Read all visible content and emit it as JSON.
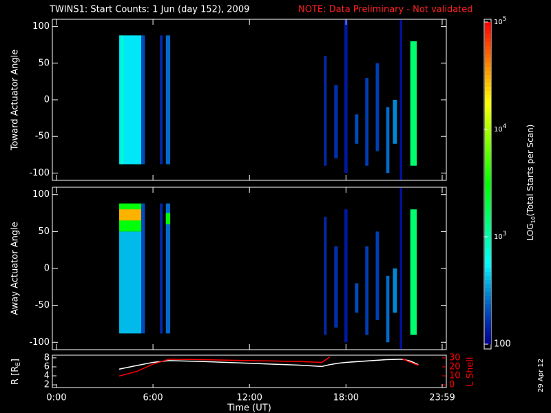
{
  "title": "TWINS1: Start Counts:  1 Jun (day 152), 2009",
  "note": "NOTE: Data Preliminary - Not validated",
  "date": "29 Apr 12",
  "colorbar": {
    "scale": "log",
    "colormap": "rainbow",
    "lim": [
      100,
      100000
    ],
    "ticks": [
      100,
      {
        "value": 1000,
        "label": "10",
        "exponent": "3"
      },
      {
        "value": 10000,
        "label": "10",
        "exponent": "4"
      },
      {
        "value": 100000,
        "label": "10",
        "exponent": "5"
      }
    ],
    "label": [
      "LOG",
      "10",
      "(Total Starts per Scan)"
    ]
  },
  "chart_data": [
    {
      "type": "heatmap",
      "ylabel": "Toward Actuator Angle",
      "xlim": [
        0,
        23.983
      ],
      "ylim": [
        -110,
        110
      ],
      "yticks": [
        -100,
        -50,
        0,
        50,
        100
      ],
      "blocks": [
        {
          "x": [
            3.9,
            5.27
          ],
          "y": [
            -88,
            88
          ],
          "value": 500
        },
        {
          "x": [
            4.0,
            4.15
          ],
          "y": [
            -88,
            88
          ],
          "value": 800
        },
        {
          "x": [
            5.27,
            5.5
          ],
          "y": [
            -88,
            88
          ],
          "value": 200
        },
        {
          "x": [
            6.43,
            6.6
          ],
          "y": [
            -88,
            88
          ],
          "value": 150
        },
        {
          "x": [
            6.8,
            7.07
          ],
          "y": [
            -88,
            88
          ],
          "value": 250
        },
        {
          "x": [
            16.63,
            16.8
          ],
          "y": [
            -90,
            60
          ],
          "value": 150
        },
        {
          "x": [
            17.27,
            17.5
          ],
          "y": [
            -80,
            20
          ],
          "value": 160
        },
        {
          "x": [
            17.9,
            18.1
          ],
          "y": [
            -100,
            110
          ],
          "value": 130
        },
        {
          "x": [
            18.56,
            18.77
          ],
          "y": [
            -60,
            -20
          ],
          "value": 200
        },
        {
          "x": [
            19.2,
            19.4
          ],
          "y": [
            -90,
            30
          ],
          "value": 180
        },
        {
          "x": [
            19.85,
            20.06
          ],
          "y": [
            -70,
            50
          ],
          "value": 180
        },
        {
          "x": [
            20.5,
            20.7
          ],
          "y": [
            -100,
            -10
          ],
          "value": 250
        },
        {
          "x": [
            20.92,
            21.17
          ],
          "y": [
            -60,
            0
          ],
          "value": 300
        },
        {
          "x": [
            21.35,
            21.5
          ],
          "y": [
            -110,
            110
          ],
          "value": 120
        },
        {
          "x": [
            22.0,
            22.4
          ],
          "y": [
            -90,
            80
          ],
          "value": 1500
        }
      ]
    },
    {
      "type": "heatmap",
      "ylabel": "Away Actuator Angle",
      "xlim": [
        0,
        23.983
      ],
      "ylim": [
        -110,
        110
      ],
      "yticks": [
        -100,
        -50,
        0,
        50,
        100
      ],
      "blocks": [
        {
          "x": [
            3.9,
            5.27
          ],
          "y": [
            -88,
            50
          ],
          "value": 400
        },
        {
          "x": [
            3.9,
            5.27
          ],
          "y": [
            50,
            88
          ],
          "value": 3000
        },
        {
          "x": [
            3.9,
            5.27
          ],
          "y": [
            65,
            80
          ],
          "value": 30000
        },
        {
          "x": [
            5.27,
            5.5
          ],
          "y": [
            -88,
            88
          ],
          "value": 200
        },
        {
          "x": [
            6.43,
            6.6
          ],
          "y": [
            -88,
            88
          ],
          "value": 150
        },
        {
          "x": [
            6.8,
            7.07
          ],
          "y": [
            -88,
            88
          ],
          "value": 250
        },
        {
          "x": [
            6.8,
            7.07
          ],
          "y": [
            60,
            75
          ],
          "value": 3000
        },
        {
          "x": [
            16.63,
            16.8
          ],
          "y": [
            -90,
            70
          ],
          "value": 150
        },
        {
          "x": [
            17.27,
            17.5
          ],
          "y": [
            -80,
            30
          ],
          "value": 160
        },
        {
          "x": [
            17.9,
            18.1
          ],
          "y": [
            -100,
            80
          ],
          "value": 130
        },
        {
          "x": [
            18.56,
            18.77
          ],
          "y": [
            -60,
            -20
          ],
          "value": 200
        },
        {
          "x": [
            19.2,
            19.4
          ],
          "y": [
            -90,
            30
          ],
          "value": 180
        },
        {
          "x": [
            19.85,
            20.06
          ],
          "y": [
            -70,
            50
          ],
          "value": 180
        },
        {
          "x": [
            20.5,
            20.7
          ],
          "y": [
            -100,
            -10
          ],
          "value": 250
        },
        {
          "x": [
            20.92,
            21.17
          ],
          "y": [
            -60,
            0
          ],
          "value": 300
        },
        {
          "x": [
            21.35,
            21.5
          ],
          "y": [
            -110,
            110
          ],
          "value": 120
        },
        {
          "x": [
            22.0,
            22.4
          ],
          "y": [
            -90,
            80
          ],
          "value": 1500
        }
      ]
    },
    {
      "type": "line",
      "xlabel": "Time (UT)",
      "ylabel": [
        "R [R",
        "E",
        "]"
      ],
      "y2label": "L Shell",
      "xlim": [
        0,
        23.983
      ],
      "ylim": [
        1.4,
        8.6
      ],
      "yticks": [
        2,
        4,
        6,
        8
      ],
      "y2lim": [
        -3,
        33
      ],
      "y2ticks": [
        0,
        10,
        20,
        30
      ],
      "xticks": [
        {
          "value": 0,
          "label": "0:00"
        },
        {
          "value": 6,
          "label": "6:00"
        },
        {
          "value": 12,
          "label": "12:00"
        },
        {
          "value": 18,
          "label": "18:00"
        },
        {
          "value": 23.983,
          "label": "23:59"
        }
      ],
      "x": [
        3.9,
        5,
        6,
        7,
        9,
        12,
        15,
        16.5,
        17,
        17.5,
        18,
        20.5,
        21.5,
        22,
        22.5
      ],
      "series": [
        {
          "color": "#ffffff",
          "values": [
            5.5,
            6.3,
            7.0,
            7.4,
            7.2,
            6.8,
            6.4,
            6.1,
            6.5,
            6.8,
            7.0,
            7.6,
            7.7,
            7.3,
            6.5
          ]
        },
        {
          "color": "#ff0000",
          "axis": "y2",
          "values": [
            9.8,
            15,
            23,
            28.5,
            28,
            27,
            26,
            25,
            31,
            null,
            null,
            null,
            29,
            25,
            21.8
          ]
        }
      ]
    }
  ]
}
